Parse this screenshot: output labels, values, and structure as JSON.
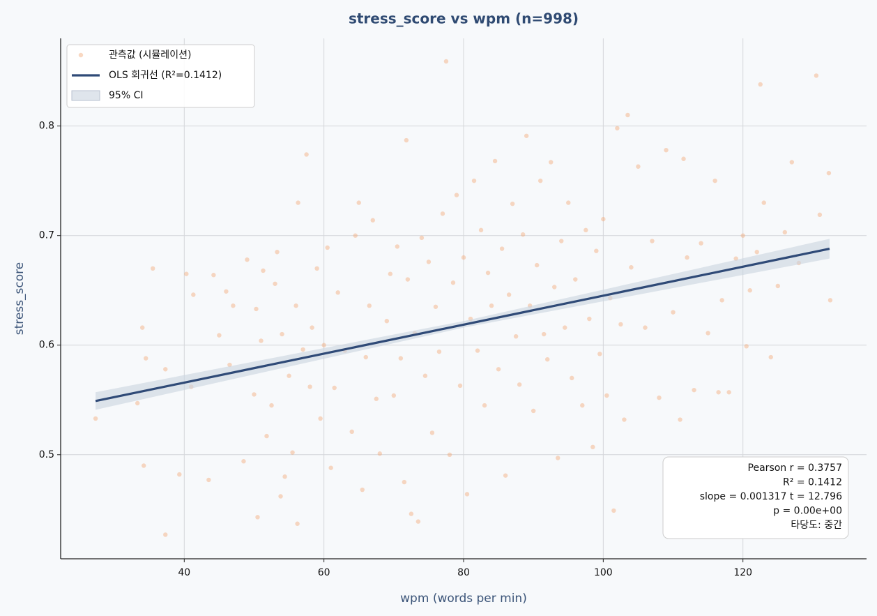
{
  "chart_data": {
    "type": "scatter",
    "title": "stress_score vs wpm  (n=998)",
    "xlabel": "wpm (words per min)",
    "ylabel": "stress_score",
    "xlim": [
      22.3,
      137.7
    ],
    "ylim": [
      0.405,
      0.88
    ],
    "xticks": [
      40,
      60,
      80,
      100,
      120
    ],
    "yticks": [
      0.5,
      0.6,
      0.7,
      0.8
    ],
    "grid": true,
    "legend": "upper left",
    "series": [
      {
        "name": "관측값 (시뮬레이션)",
        "color": "#f2a877",
        "x": [
          27.3,
          33.3,
          34,
          34.2,
          34.5,
          35.5,
          37.3,
          37.3,
          39.3,
          40.3,
          41,
          41.3,
          43.5,
          44.2,
          45,
          46,
          46.5,
          47,
          48.5,
          49,
          50,
          50.3,
          50.5,
          51,
          51.3,
          51.8,
          52.5,
          53,
          53.3,
          53.8,
          54,
          54.4,
          55,
          55.5,
          56,
          56.2,
          56.3,
          57,
          57.5,
          58,
          58.3,
          59,
          59.5,
          60,
          60.5,
          61,
          61.5,
          62,
          63,
          64,
          64.5,
          65,
          65.5,
          66,
          66.5,
          67,
          67.5,
          68,
          69,
          69.5,
          70,
          70.5,
          71,
          71.5,
          71.8,
          72,
          72.5,
          73,
          73.5,
          74,
          74.5,
          75,
          75.5,
          76,
          76.5,
          77,
          77.5,
          78,
          78.5,
          79,
          79.5,
          80,
          80.5,
          81,
          81.5,
          82,
          82.5,
          83,
          83.5,
          84,
          84.5,
          85,
          85.5,
          86,
          86.5,
          87,
          87.5,
          88,
          88.5,
          89,
          89.5,
          90,
          90.5,
          91,
          91.5,
          92,
          92.5,
          93,
          93.5,
          94,
          94.5,
          95,
          95.5,
          96,
          97,
          97.5,
          98,
          98.5,
          99,
          99.5,
          100,
          100.5,
          101,
          101.5,
          102,
          102.5,
          103,
          103.5,
          104,
          105,
          106,
          107,
          108,
          109,
          110,
          111,
          111.5,
          112,
          113,
          114,
          115,
          116,
          116.5,
          117,
          118,
          119,
          120,
          120.5,
          121,
          122,
          122.5,
          123,
          124,
          125,
          126,
          127,
          128,
          130.5,
          131,
          132.3,
          132.5
        ],
        "values": [
          0.533,
          0.547,
          0.616,
          0.49,
          0.588,
          0.67,
          0.427,
          0.578,
          0.482,
          0.665,
          0.562,
          0.646,
          0.477,
          0.664,
          0.609,
          0.649,
          0.582,
          0.636,
          0.494,
          0.678,
          0.555,
          0.633,
          0.443,
          0.604,
          0.668,
          0.517,
          0.545,
          0.656,
          0.685,
          0.462,
          0.61,
          0.48,
          0.572,
          0.502,
          0.636,
          0.437,
          0.73,
          0.596,
          0.774,
          0.562,
          0.616,
          0.67,
          0.533,
          0.6,
          0.689,
          0.488,
          0.561,
          0.648,
          0.595,
          0.521,
          0.7,
          0.73,
          0.468,
          0.589,
          0.636,
          0.714,
          0.551,
          0.501,
          0.622,
          0.665,
          0.554,
          0.69,
          0.588,
          0.475,
          0.787,
          0.66,
          0.446,
          0.611,
          0.439,
          0.698,
          0.572,
          0.676,
          0.52,
          0.635,
          0.594,
          0.72,
          0.859,
          0.5,
          0.657,
          0.737,
          0.563,
          0.68,
          0.464,
          0.624,
          0.75,
          0.595,
          0.705,
          0.545,
          0.666,
          0.636,
          0.768,
          0.578,
          0.688,
          0.481,
          0.646,
          0.729,
          0.608,
          0.564,
          0.701,
          0.791,
          0.636,
          0.54,
          0.673,
          0.75,
          0.61,
          0.587,
          0.767,
          0.653,
          0.497,
          0.695,
          0.616,
          0.73,
          0.57,
          0.66,
          0.545,
          0.705,
          0.624,
          0.507,
          0.686,
          0.592,
          0.715,
          0.554,
          0.643,
          0.449,
          0.798,
          0.619,
          0.532,
          0.81,
          0.671,
          0.763,
          0.616,
          0.695,
          0.552,
          0.778,
          0.63,
          0.532,
          0.77,
          0.68,
          0.559,
          0.693,
          0.611,
          0.75,
          0.557,
          0.641,
          0.557,
          0.679,
          0.7,
          0.599,
          0.65,
          0.685,
          0.838,
          0.73,
          0.589,
          0.654,
          0.703,
          0.767,
          0.675,
          0.846,
          0.719,
          0.757,
          0.641
        ]
      },
      {
        "name": "OLS 회귀선 (R²=0.1412)",
        "color": "#2f4a77",
        "x": [
          27.3,
          132.4
        ],
        "values": [
          0.549,
          0.688
        ]
      },
      {
        "name": "95% CI",
        "color": "#c9d3e0",
        "x": [
          27.3,
          80,
          132.4
        ],
        "lower": [
          0.541,
          0.616,
          0.679
        ],
        "upper": [
          0.557,
          0.622,
          0.697
        ]
      }
    ],
    "annotations": [
      "Pearson r = 0.3757",
      "R² = 0.1412",
      "slope = 0.001317  t = 12.796",
      "p = 0.00e+00",
      "타당도: 중간"
    ]
  }
}
